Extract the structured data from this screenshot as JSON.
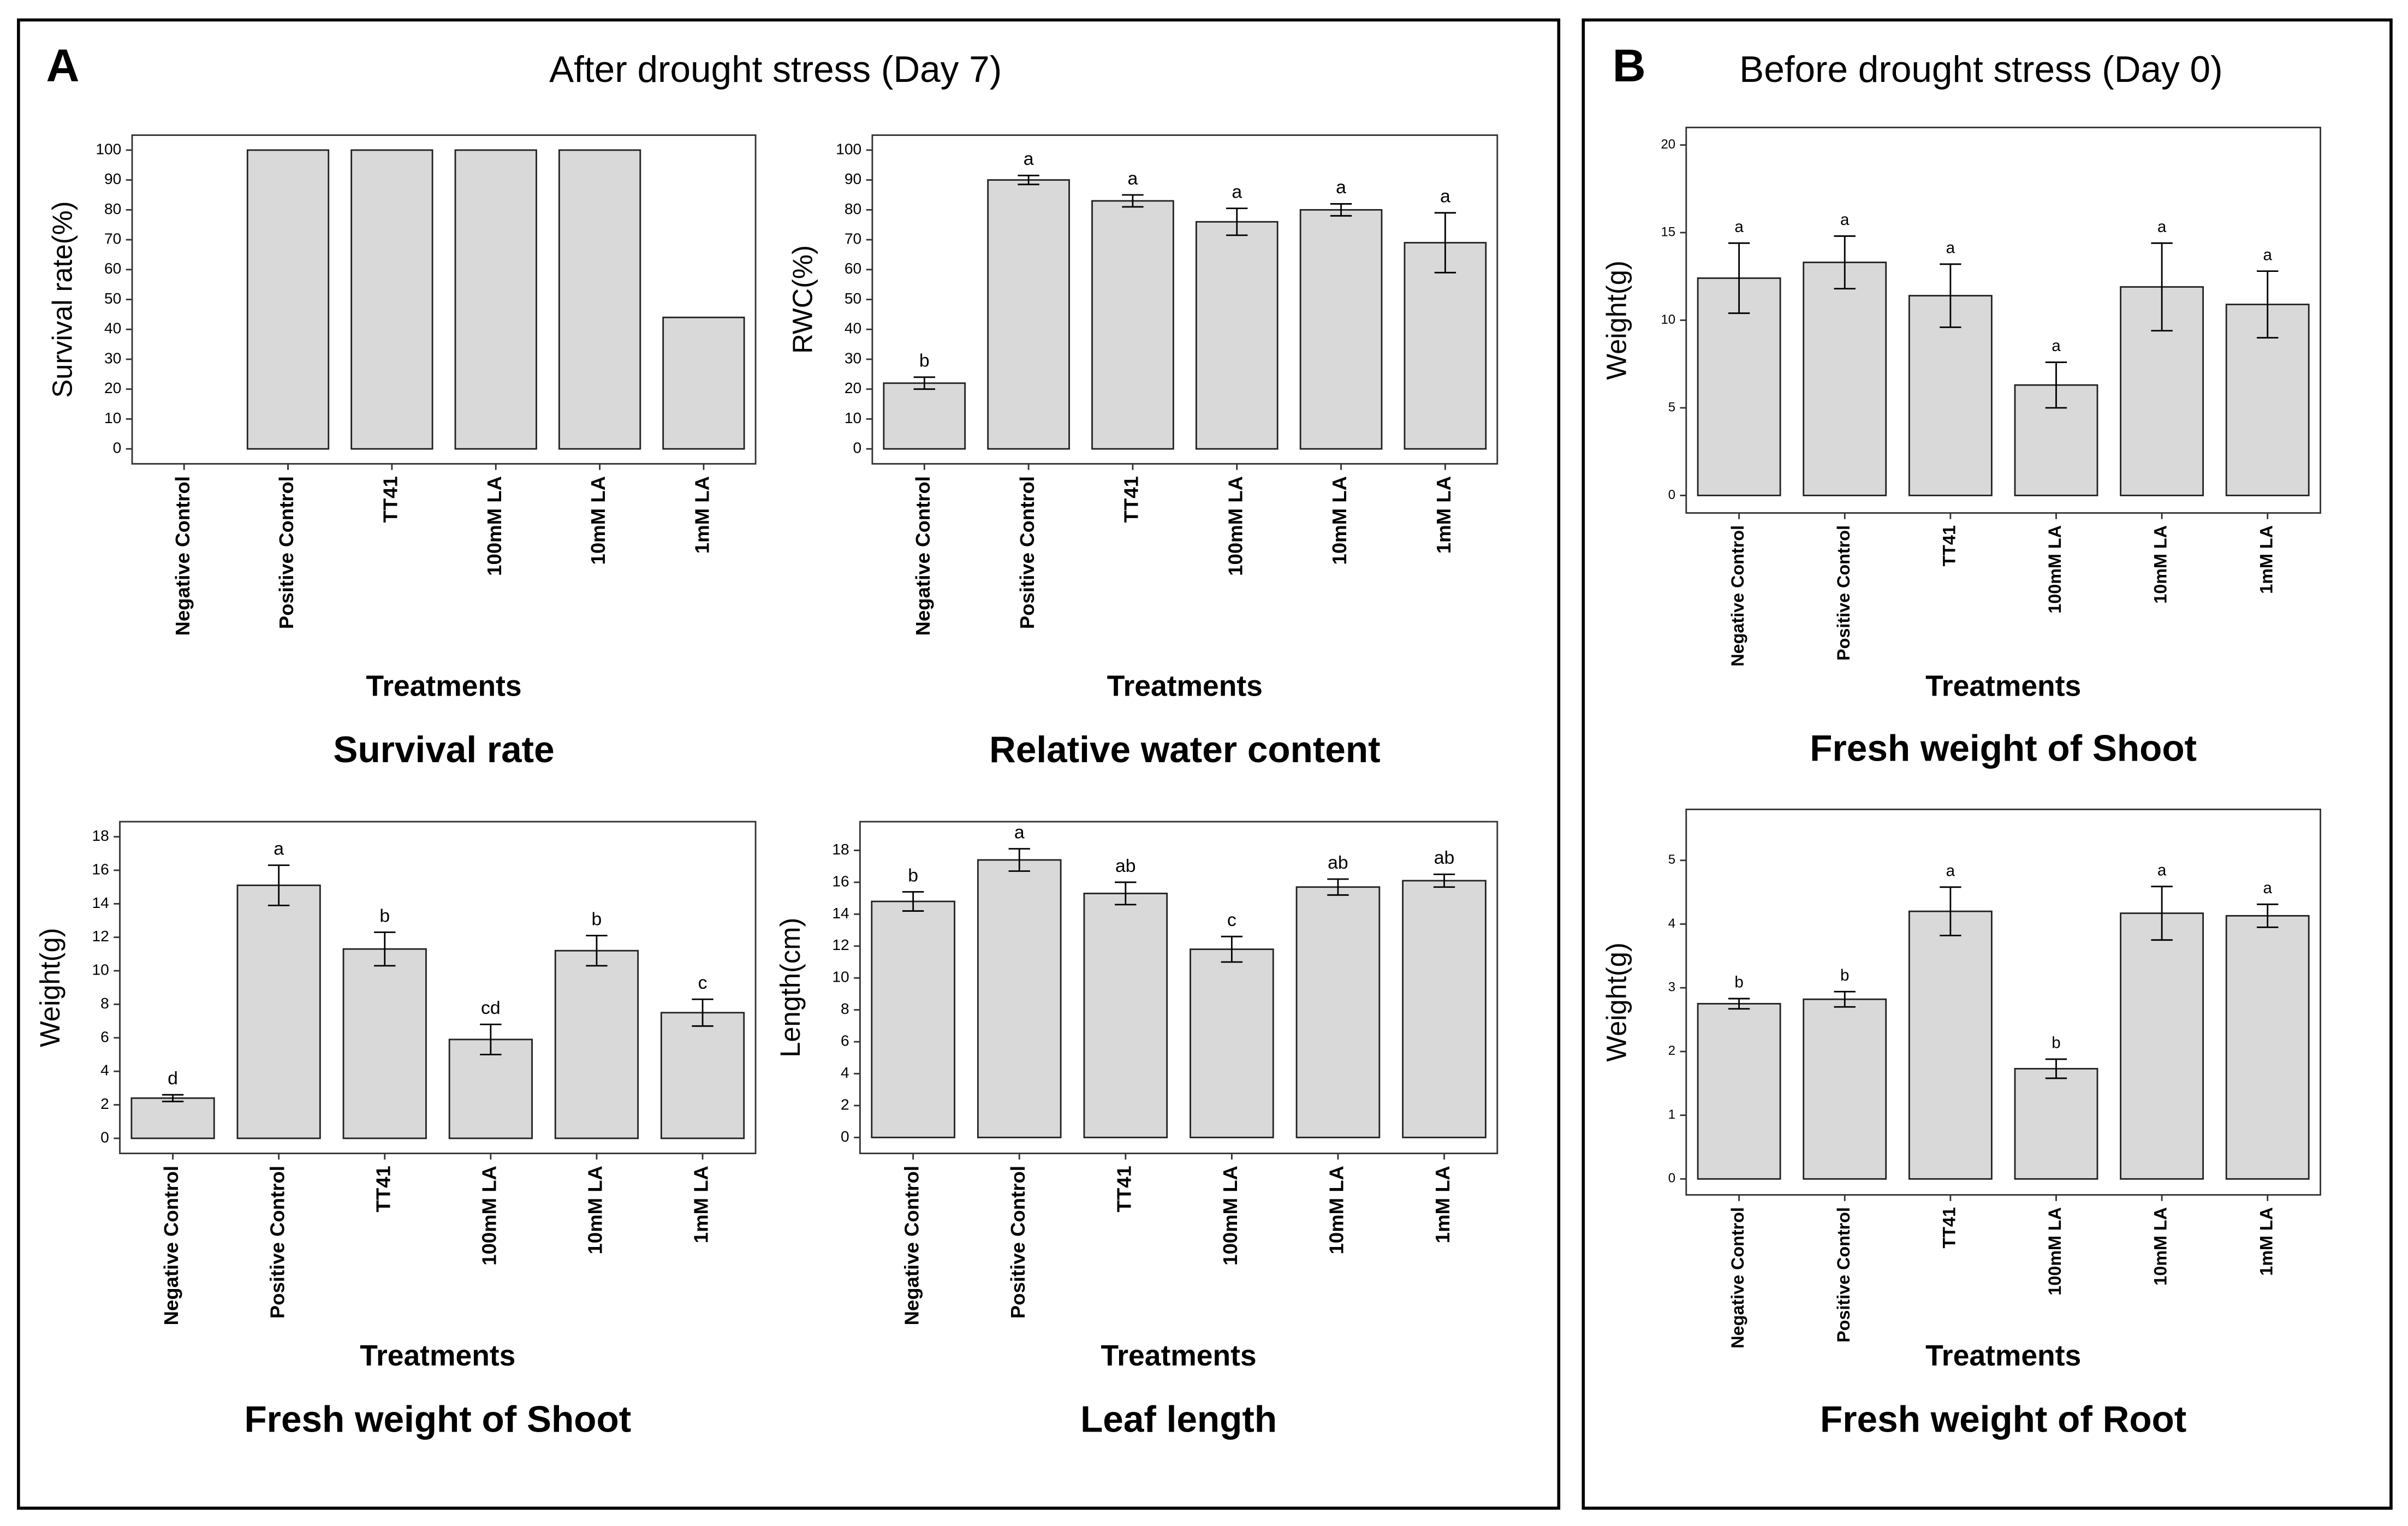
{
  "panels": [
    {
      "label": "A",
      "title": "After drought stress (Day 7)"
    },
    {
      "label": "B",
      "title": "Before drought stress (Day 0)"
    }
  ],
  "chart_data": [
    {
      "type": "bar",
      "title": "Survival rate",
      "x_label": "Treatments",
      "y_label": "Survival rate(%)",
      "categories": [
        "Negative Control",
        "Positive Control",
        "TT41",
        "100mM LA",
        "10mM LA",
        "1mM LA"
      ],
      "values": [
        0,
        100,
        100,
        100,
        100,
        44
      ],
      "color": "#d9d9d9",
      "ylim": [
        -5,
        105
      ],
      "yticks": [
        0,
        10,
        20,
        30,
        40,
        50,
        60,
        70,
        80,
        90,
        100
      ]
    },
    {
      "type": "bar",
      "title": "Relative water content",
      "x_label": "Treatments",
      "y_label": "RWC(%)",
      "categories": [
        "Negative Control",
        "Positive Control",
        "TT41",
        "100mM LA",
        "10mM LA",
        "1mM LA"
      ],
      "values": [
        22,
        90,
        83,
        76,
        80,
        69
      ],
      "errors": [
        2,
        1.5,
        2,
        4.5,
        2,
        10
      ],
      "annotations": [
        "b",
        "a",
        "a",
        "a",
        "a",
        "a"
      ],
      "color": "#d9d9d9",
      "ylim": [
        -5,
        105
      ],
      "yticks": [
        0,
        10,
        20,
        30,
        40,
        50,
        60,
        70,
        80,
        90,
        100
      ]
    },
    {
      "type": "bar",
      "title": "Fresh weight of Shoot",
      "x_label": "Treatments",
      "y_label": "Weight(g)",
      "categories": [
        "Negative Control",
        "Positive Control",
        "TT41",
        "100mM LA",
        "10mM LA",
        "1mM LA"
      ],
      "values": [
        2.4,
        15.1,
        11.3,
        5.9,
        11.2,
        7.5
      ],
      "errors": [
        0.2,
        1.2,
        1.0,
        0.9,
        0.9,
        0.8
      ],
      "annotations": [
        "d",
        "a",
        "b",
        "cd",
        "b",
        "c"
      ],
      "color": "#d9d9d9",
      "ylim": [
        -0.9,
        18.9
      ],
      "yticks": [
        0,
        2,
        4,
        6,
        8,
        10,
        12,
        14,
        16,
        18
      ]
    },
    {
      "type": "bar",
      "title": "Leaf length",
      "x_label": "Treatments",
      "y_label": "Length(cm)",
      "categories": [
        "Negative Control",
        "Positive Control",
        "TT41",
        "100mM LA",
        "10mM LA",
        "1mM LA"
      ],
      "values": [
        14.8,
        17.4,
        15.3,
        11.8,
        15.7,
        16.1
      ],
      "errors": [
        0.6,
        0.7,
        0.7,
        0.8,
        0.5,
        0.4
      ],
      "annotations": [
        "b",
        "a",
        "ab",
        "c",
        "ab",
        "ab"
      ],
      "color": "#d9d9d9",
      "ylim": [
        -1,
        19.8
      ],
      "yticks": [
        0,
        2,
        4,
        6,
        8,
        10,
        12,
        14,
        16,
        18
      ]
    },
    {
      "type": "bar",
      "title": "Fresh weight of Shoot",
      "x_label": "Treatments",
      "y_label": "Weight(g)",
      "categories": [
        "Negative Control",
        "Positive Control",
        "TT41",
        "100mM LA",
        "10mM LA",
        "1mM LA"
      ],
      "values": [
        12.4,
        13.3,
        11.4,
        6.3,
        11.9,
        10.9
      ],
      "errors": [
        2.0,
        1.5,
        1.8,
        1.3,
        2.5,
        1.9
      ],
      "annotations": [
        "a",
        "a",
        "a",
        "a",
        "a",
        "a"
      ],
      "color": "#d9d9d9",
      "ylim": [
        -1,
        21
      ],
      "yticks": [
        0,
        5,
        10,
        15,
        20
      ]
    },
    {
      "type": "bar",
      "title": "Fresh weight of Root",
      "x_label": "Treatments",
      "y_label": "Weight(g)",
      "categories": [
        "Negative Control",
        "Positive Control",
        "TT41",
        "100mM LA",
        "10mM LA",
        "1mM LA"
      ],
      "values": [
        2.75,
        2.82,
        4.2,
        1.73,
        4.17,
        4.13
      ],
      "errors": [
        0.08,
        0.12,
        0.38,
        0.15,
        0.42,
        0.18
      ],
      "annotations": [
        "b",
        "b",
        "a",
        "b",
        "a",
        "a"
      ],
      "color": "#d9d9d9",
      "ylim": [
        -0.25,
        5.8
      ],
      "yticks": [
        0,
        1,
        2,
        3,
        4,
        5
      ]
    }
  ]
}
